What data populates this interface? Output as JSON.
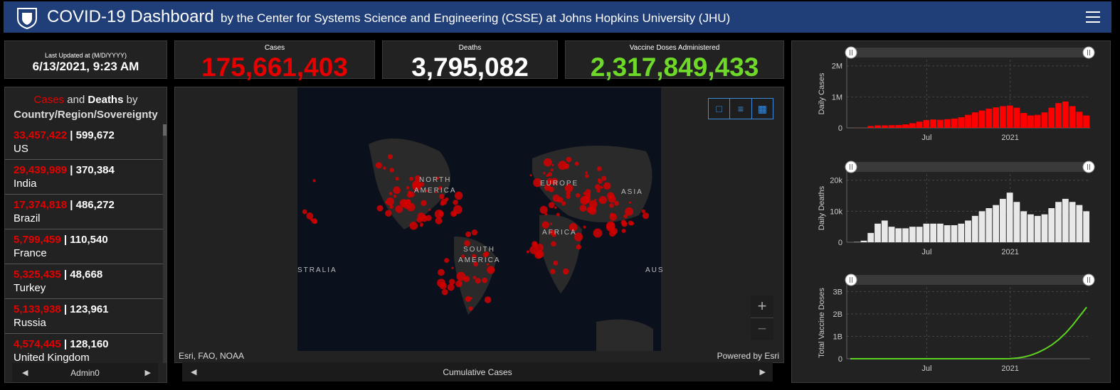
{
  "header": {
    "title": "COVID-19 Dashboard",
    "subtitle": "by the Center for Systems Science and Engineering (CSSE) at Johns Hopkins University (JHU)"
  },
  "last_updated": {
    "label": "Last Updated at (M/D/YYYY)",
    "value": "6/13/2021, 9:23 AM"
  },
  "stats": [
    {
      "label": "Cases",
      "value": "175,661,403",
      "color": "#e60000"
    },
    {
      "label": "Deaths",
      "value": "3,795,082",
      "color": "#ffffff"
    },
    {
      "label": "Vaccine Doses Administered",
      "value": "2,317,849,433",
      "color": "#6fd92a"
    }
  ],
  "list": {
    "heading": {
      "cases_word": "Cases",
      "and": "and",
      "deaths_word": "Deaths",
      "by": "by",
      "scope": "Country/Region/Sovereignty"
    },
    "items": [
      {
        "cases": "33,457,422",
        "deaths": "599,672",
        "name": "US"
      },
      {
        "cases": "29,439,989",
        "deaths": "370,384",
        "name": "India"
      },
      {
        "cases": "17,374,818",
        "deaths": "486,272",
        "name": "Brazil"
      },
      {
        "cases": "5,799,459",
        "deaths": "110,540",
        "name": "France"
      },
      {
        "cases": "5,325,435",
        "deaths": "48,668",
        "name": "Turkey"
      },
      {
        "cases": "5,133,938",
        "deaths": "123,961",
        "name": "Russia"
      },
      {
        "cases": "4,574,445",
        "deaths": "128,160",
        "name": "United Kingdom"
      }
    ],
    "footer": "Admin0"
  },
  "map": {
    "labels": [
      "NORTH",
      "AMERICA",
      "EUROPE",
      "ASIA",
      "AFRICA",
      "SOUTH",
      "AMERICA",
      "STRALIA",
      "AUS"
    ],
    "attribution": "Esri, FAO, NOAA",
    "powered": "Powered by Esri",
    "footer": "Cumulative Cases"
  },
  "charts": [
    {
      "type": "bar",
      "ylabel": "Daily Cases",
      "color": "#ff0000",
      "values": [
        0,
        2000,
        4000,
        60000,
        80000,
        80000,
        85000,
        90000,
        110000,
        150000,
        200000,
        250000,
        270000,
        260000,
        280000,
        300000,
        340000,
        420000,
        500000,
        560000,
        620000,
        660000,
        700000,
        720000,
        650000,
        480000,
        400000,
        420000,
        500000,
        650000,
        800000,
        850000,
        700000,
        520000,
        400000
      ],
      "ylim": [
        0,
        2200000
      ],
      "yticks": [
        0,
        {
          "value": 1000000,
          "label": "1M"
        },
        {
          "value": 2000000,
          "label": "2M"
        }
      ],
      "xticks": [
        {
          "value": 11,
          "label": "Jul"
        },
        {
          "value": 23,
          "label": "2021"
        }
      ]
    },
    {
      "type": "bar",
      "ylabel": "Daily Deaths",
      "color": "#e8e8e8",
      "values": [
        0,
        100,
        500,
        3000,
        6000,
        7000,
        5000,
        4500,
        4500,
        5000,
        5000,
        6000,
        6000,
        6000,
        5500,
        5500,
        6000,
        7000,
        8500,
        10000,
        11000,
        12000,
        14000,
        16000,
        13000,
        10000,
        9000,
        8500,
        9000,
        11000,
        13000,
        14000,
        13000,
        12000,
        10000
      ],
      "ylim": [
        0,
        22000
      ],
      "yticks": [
        0,
        {
          "value": 10000,
          "label": "10k"
        },
        {
          "value": 20000,
          "label": "20k"
        }
      ],
      "xticks": [
        {
          "value": 11,
          "label": "Jul"
        },
        {
          "value": 23,
          "label": "2021"
        }
      ]
    },
    {
      "type": "line",
      "ylabel": "Total Vaccine Doses",
      "color": "#5fd321",
      "values": [
        0,
        0,
        0,
        0,
        0,
        0,
        0,
        0,
        0,
        0,
        0,
        0,
        0,
        0,
        0,
        0,
        0,
        0,
        0,
        0,
        0,
        0,
        0,
        5000000,
        30000000,
        80000000,
        160000000,
        280000000,
        430000000,
        620000000,
        860000000,
        1150000000,
        1500000000,
        1900000000,
        2300000000
      ],
      "ylim": [
        0,
        3200000000
      ],
      "yticks": [
        0,
        {
          "value": 1000000000,
          "label": "1B"
        },
        {
          "value": 2000000000,
          "label": "2B"
        },
        {
          "value": 3000000000,
          "label": "3B"
        }
      ],
      "xticks": [
        {
          "value": 11,
          "label": "Jul"
        },
        {
          "value": 23,
          "label": "2021"
        }
      ]
    }
  ]
}
